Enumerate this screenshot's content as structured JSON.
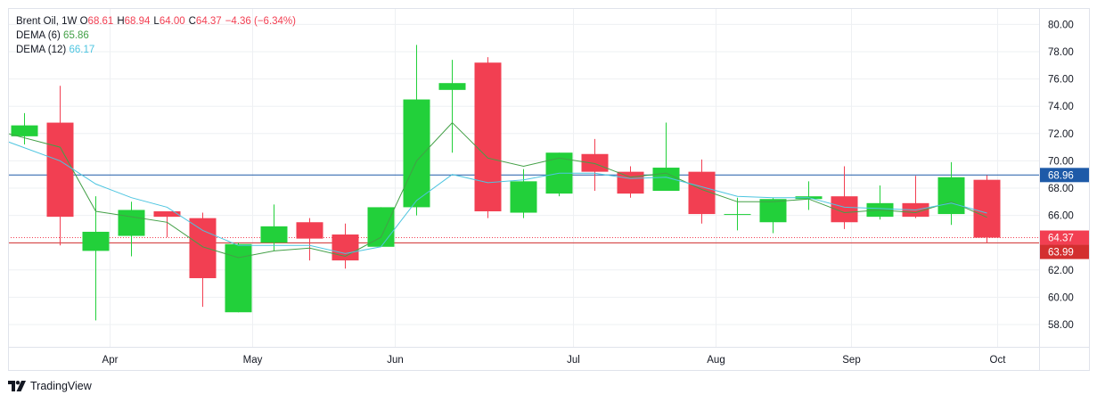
{
  "legend": {
    "symbol": "Brent Oil",
    "interval": "1W",
    "o_label": "O",
    "o_value": "68.61",
    "h_label": "H",
    "h_value": "68.94",
    "l_label": "L",
    "l_value": "64.00",
    "c_label": "C",
    "c_value": "64.37",
    "change": "−4.36 (−6.34%)",
    "dema6_label": "DEMA (6)",
    "dema6_value": "65.86",
    "dema12_label": "DEMA (12)",
    "dema12_value": "66.17"
  },
  "branding": {
    "logo_text": "TradingView"
  },
  "colors": {
    "up": "#22d03a",
    "down": "#f23f52",
    "dema6": "#43a047",
    "dema12": "#4dc5e0",
    "price_line": "#1e5aa8",
    "last_close_line": "#d32f2f",
    "grid": "#eef0f3",
    "axis_text": "#131722"
  },
  "chart_data": {
    "type": "candlestick",
    "title": "Brent Oil, 1W",
    "ylim": [
      56.0,
      81.0
    ],
    "y_ticks": [
      "58.00",
      "60.00",
      "62.00",
      "64.00",
      "66.00",
      "68.00",
      "70.00",
      "72.00",
      "74.00",
      "76.00",
      "78.00",
      "80.00"
    ],
    "x_tick_labels": [
      {
        "label": "Apr",
        "bar": 2.4
      },
      {
        "label": "May",
        "bar": 6.4
      },
      {
        "label": "Jun",
        "bar": 10.4
      },
      {
        "label": "Jul",
        "bar": 15.4
      },
      {
        "label": "Aug",
        "bar": 19.4
      },
      {
        "label": "Sep",
        "bar": 23.2
      },
      {
        "label": "Oct",
        "bar": 27.3
      }
    ],
    "ohlc": [
      {
        "o": 71.8,
        "h": 73.5,
        "l": 71.2,
        "c": 72.6
      },
      {
        "o": 72.8,
        "h": 75.5,
        "l": 63.8,
        "c": 65.9
      },
      {
        "o": 63.4,
        "h": 67.4,
        "l": 58.3,
        "c": 64.8
      },
      {
        "o": 64.5,
        "h": 67.0,
        "l": 63.0,
        "c": 66.4
      },
      {
        "o": 66.3,
        "h": 66.3,
        "l": 64.4,
        "c": 65.9
      },
      {
        "o": 65.8,
        "h": 66.2,
        "l": 59.3,
        "c": 61.4
      },
      {
        "o": 58.9,
        "h": 64.0,
        "l": 58.9,
        "c": 63.9
      },
      {
        "o": 64.0,
        "h": 66.8,
        "l": 63.4,
        "c": 65.2
      },
      {
        "o": 65.5,
        "h": 65.8,
        "l": 62.7,
        "c": 64.3
      },
      {
        "o": 64.6,
        "h": 65.4,
        "l": 62.1,
        "c": 62.7
      },
      {
        "o": 63.7,
        "h": 66.6,
        "l": 63.7,
        "c": 66.6
      },
      {
        "o": 66.6,
        "h": 78.5,
        "l": 66.0,
        "c": 74.5
      },
      {
        "o": 75.2,
        "h": 77.4,
        "l": 70.6,
        "c": 75.7
      },
      {
        "o": 77.2,
        "h": 77.6,
        "l": 65.8,
        "c": 66.3
      },
      {
        "o": 66.2,
        "h": 69.4,
        "l": 65.8,
        "c": 68.5
      },
      {
        "o": 67.6,
        "h": 70.6,
        "l": 67.4,
        "c": 70.6
      },
      {
        "o": 70.5,
        "h": 71.6,
        "l": 67.8,
        "c": 69.2
      },
      {
        "o": 69.2,
        "h": 69.6,
        "l": 67.3,
        "c": 67.6
      },
      {
        "o": 67.8,
        "h": 72.8,
        "l": 67.8,
        "c": 69.5
      },
      {
        "o": 69.2,
        "h": 70.1,
        "l": 65.4,
        "c": 66.1
      },
      {
        "o": 66.1,
        "h": 67.3,
        "l": 64.9,
        "c": 66.1
      },
      {
        "o": 65.5,
        "h": 67.3,
        "l": 64.7,
        "c": 67.2
      },
      {
        "o": 67.2,
        "h": 68.5,
        "l": 66.4,
        "c": 67.4
      },
      {
        "o": 67.4,
        "h": 69.6,
        "l": 65.0,
        "c": 65.5
      },
      {
        "o": 65.9,
        "h": 68.2,
        "l": 65.7,
        "c": 66.9
      },
      {
        "o": 66.9,
        "h": 68.9,
        "l": 65.8,
        "c": 65.9
      },
      {
        "o": 66.1,
        "h": 69.9,
        "l": 65.3,
        "c": 68.8
      },
      {
        "o": 68.61,
        "h": 68.94,
        "l": 64.0,
        "c": 64.37
      }
    ],
    "series": [
      {
        "name": "DEMA (6)",
        "values": [
          72.0,
          71.0,
          66.3,
          65.9,
          65.5,
          63.7,
          62.9,
          63.4,
          63.6,
          63.0,
          64.4,
          70.0,
          72.8,
          70.2,
          69.6,
          70.2,
          69.8,
          68.8,
          69.1,
          67.9,
          67.0,
          67.0,
          67.2,
          66.2,
          66.4,
          66.2,
          67.0,
          65.86
        ]
      },
      {
        "name": "DEMA (12)",
        "values": [
          71.4,
          70.0,
          68.3,
          67.3,
          66.6,
          64.9,
          63.8,
          63.8,
          63.8,
          63.2,
          63.7,
          67.1,
          69.0,
          68.4,
          68.6,
          69.1,
          69.1,
          68.7,
          68.8,
          68.1,
          67.4,
          67.3,
          67.3,
          66.6,
          66.5,
          66.4,
          66.9,
          66.17
        ]
      }
    ],
    "price_lines": [
      {
        "label": "68.96",
        "value": 68.96
      },
      {
        "label": "64.37",
        "value": 64.37
      },
      {
        "label": "63.99",
        "value": 63.99
      }
    ]
  }
}
